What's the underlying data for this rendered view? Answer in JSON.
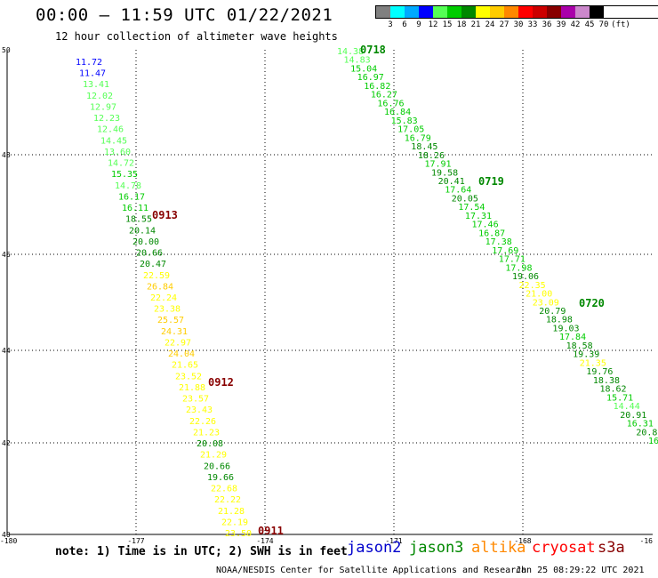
{
  "header": {
    "title": "00:00 – 11:59 UTC 01/22/2021",
    "subtitle": "12 hour collection of altimeter wave heights"
  },
  "legend": {
    "unit_label": "(ft)",
    "items": [
      {
        "label": "3",
        "color": "#808080"
      },
      {
        "label": "6",
        "color": "#00ffff"
      },
      {
        "label": "9",
        "color": "#00aaff"
      },
      {
        "label": "12",
        "color": "#0000ff"
      },
      {
        "label": "15",
        "color": "#55ff55"
      },
      {
        "label": "18",
        "color": "#00cc00"
      },
      {
        "label": "21",
        "color": "#008800"
      },
      {
        "label": "24",
        "color": "#ffff00"
      },
      {
        "label": "27",
        "color": "#ffcc00"
      },
      {
        "label": "30",
        "color": "#ff8800"
      },
      {
        "label": "33",
        "color": "#ff0000"
      },
      {
        "label": "36",
        "color": "#cc0000"
      },
      {
        "label": "39",
        "color": "#880000"
      },
      {
        "label": "42",
        "color": "#aa00aa"
      },
      {
        "label": "45",
        "color": "#cc88cc"
      },
      {
        "label": "70",
        "color": "#000000"
      }
    ]
  },
  "map": {
    "lat_ticks": [
      "50",
      "48",
      "46",
      "44",
      "42",
      "40"
    ],
    "lon_ticks": [
      "-180",
      "-177",
      "-174",
      "-171",
      "-168",
      "-16"
    ],
    "tracks": [
      {
        "time_labels": [
          {
            "text": "0913",
            "color": "#880000"
          },
          {
            "text": "0912",
            "color": "#880000"
          },
          {
            "text": "0911",
            "color": "#880000"
          }
        ],
        "values": [
          "11.72",
          "11.47",
          "13.41",
          "12.02",
          "12.97",
          "12.23",
          "12.46",
          "14.45",
          "13.60",
          "14.72",
          "15.35",
          "14.78",
          "16.17",
          "16.11",
          "18.55",
          "20.14",
          "20.00",
          "20.66",
          "20.47",
          "22.59",
          "26.84",
          "22.24",
          "23.38",
          "25.57",
          "24.31",
          "22.97",
          "24.04",
          "21.65",
          "23.52",
          "21.88",
          "23.57",
          "23.43",
          "22.26",
          "21.23",
          "20.08",
          "21.29",
          "20.66",
          "19.66",
          "22.68",
          "22.22",
          "21.28",
          "22.19",
          "23.50"
        ]
      },
      {
        "time_labels": [
          {
            "text": "0718",
            "color": "#008800"
          },
          {
            "text": "0719",
            "color": "#008800"
          },
          {
            "text": "0720",
            "color": "#008800"
          }
        ],
        "values": [
          "14.38",
          "14.83",
          "15.04",
          "16.97",
          "16.82",
          "16.27",
          "16.76",
          "16.84",
          "15.83",
          "17.05",
          "16.79",
          "18.45",
          "18.26",
          "17.91",
          "19.58",
          "20.41",
          "17.64",
          "20.05",
          "17.54",
          "17.31",
          "17.46",
          "16.87",
          "17.38",
          "17.69",
          "17.71",
          "17.98",
          "19.06",
          "22.35",
          "21.00",
          "23.09",
          "20.79",
          "18.98",
          "19.03",
          "17.84",
          "18.58",
          "19.39",
          "21.35",
          "19.76",
          "18.38",
          "18.62",
          "15.71",
          "14.44",
          "20.91",
          "16.31",
          "20.8",
          "16"
        ]
      }
    ]
  },
  "footer": {
    "note": "note: 1) Time is in UTC; 2) SWH is in feet",
    "missions": [
      {
        "name": "jason2",
        "color": "#0000cc"
      },
      {
        "name": "jason3",
        "color": "#008800"
      },
      {
        "name": "altika",
        "color": "#ff8800"
      },
      {
        "name": "cryosat",
        "color": "#ff0000"
      },
      {
        "name": "s3a",
        "color": "#880000"
      }
    ],
    "credit": "NOAA/NESDIS Center for Satellite Applications and Research",
    "timestamp": "Jan 25 08:29:22 UTC 2021"
  }
}
